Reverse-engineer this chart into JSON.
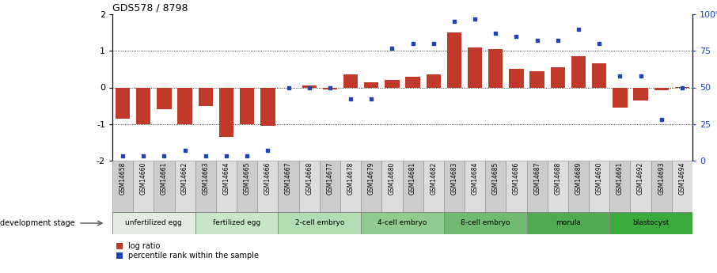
{
  "title": "GDS578 / 8798",
  "samples": [
    "GSM14658",
    "GSM14660",
    "GSM14661",
    "GSM14662",
    "GSM14663",
    "GSM14664",
    "GSM14665",
    "GSM14666",
    "GSM14667",
    "GSM14668",
    "GSM14677",
    "GSM14678",
    "GSM14679",
    "GSM14680",
    "GSM14681",
    "GSM14682",
    "GSM14683",
    "GSM14684",
    "GSM14685",
    "GSM14686",
    "GSM14687",
    "GSM14688",
    "GSM14689",
    "GSM14690",
    "GSM14691",
    "GSM14692",
    "GSM14693",
    "GSM14694"
  ],
  "log_ratio": [
    -0.85,
    -1.0,
    -0.6,
    -1.0,
    -0.5,
    -1.35,
    -1.0,
    -1.05,
    0.0,
    0.05,
    -0.05,
    0.35,
    0.15,
    0.2,
    0.3,
    0.35,
    1.5,
    1.1,
    1.05,
    0.5,
    0.45,
    0.55,
    0.85,
    0.65,
    -0.55,
    -0.35,
    -0.08,
    0.02
  ],
  "percentile_rank": [
    3,
    3,
    3,
    7,
    3,
    3,
    3,
    7,
    50,
    50,
    50,
    42,
    42,
    77,
    80,
    80,
    95,
    97,
    87,
    85,
    82,
    82,
    90,
    80,
    58,
    58,
    28,
    50
  ],
  "stages": [
    {
      "label": "unfertilized egg",
      "start": 0,
      "end": 4,
      "color": "#e0ede0"
    },
    {
      "label": "fertilized egg",
      "start": 4,
      "end": 8,
      "color": "#c8e6c8"
    },
    {
      "label": "2-cell embryo",
      "start": 8,
      "end": 12,
      "color": "#b2ddb2"
    },
    {
      "label": "4-cell embryo",
      "start": 12,
      "end": 16,
      "color": "#90cc90"
    },
    {
      "label": "8-cell embryo",
      "start": 16,
      "end": 20,
      "color": "#70bb70"
    },
    {
      "label": "morula",
      "start": 20,
      "end": 24,
      "color": "#50aa50"
    },
    {
      "label": "blastocyst",
      "start": 24,
      "end": 28,
      "color": "#3daa3d"
    }
  ],
  "bar_color": "#c0392b",
  "dot_color": "#2244bb",
  "left_ylim": [
    -2,
    2
  ],
  "right_ylim": [
    0,
    100
  ],
  "left_yticks": [
    -2,
    -1,
    0,
    1,
    2
  ],
  "right_yticks": [
    0,
    25,
    50,
    75,
    100
  ],
  "right_yticklabels": [
    "0",
    "25",
    "50",
    "75",
    "100%"
  ],
  "hline_dotted": [
    -1,
    0,
    1
  ],
  "dev_stage_label": "development stage",
  "legend_log_ratio": "log ratio",
  "legend_percentile": "percentile rank within the sample",
  "cell_colors": [
    "#cccccc",
    "#dddddd"
  ]
}
